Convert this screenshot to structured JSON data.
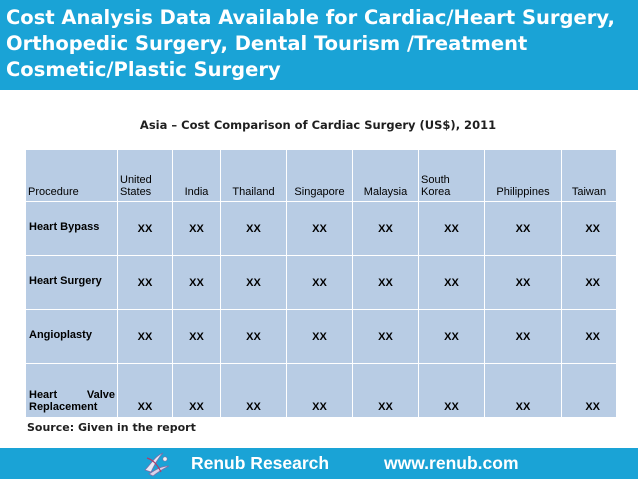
{
  "header": {
    "title": "Cost Analysis Data Available for Cardiac/Heart Surgery,\nOrthopedic Surgery, Dental Tourism /Treatment\nCosmetic/Plastic Surgery"
  },
  "table": {
    "caption": "Asia – Cost Comparison of Cardiac Surgery (US$), 2011",
    "headers": [
      "Procedure",
      "United\nStates",
      "India",
      "Thailand",
      "Singapore",
      "Malaysia",
      "South\nKorea",
      "Philippines",
      "Taiwan"
    ],
    "rows": [
      {
        "label": "Heart Bypass",
        "values": [
          "XX",
          "XX",
          "XX",
          "XX",
          "XX",
          "XX",
          "XX",
          "XX"
        ]
      },
      {
        "label": "Heart Surgery",
        "values": [
          "XX",
          "XX",
          "XX",
          "XX",
          "XX",
          "XX",
          "XX",
          "XX"
        ]
      },
      {
        "label": "Angioplasty",
        "values": [
          "XX",
          "XX",
          "XX",
          "XX",
          "XX",
          "XX",
          "XX",
          "XX"
        ]
      },
      {
        "label": "Heart Valve Replacement",
        "values": [
          "XX",
          "XX",
          "XX",
          "XX",
          "XX",
          "XX",
          "XX",
          "XX"
        ]
      }
    ]
  },
  "source": "Source: Given in the report",
  "footer": {
    "brand": "Renub Research",
    "url": "www.renub.com"
  },
  "colors": {
    "accent": "#1aa3d6",
    "table_fill": "#b8cce4"
  },
  "icons": {
    "footer_logo": "renub-logo-icon"
  }
}
